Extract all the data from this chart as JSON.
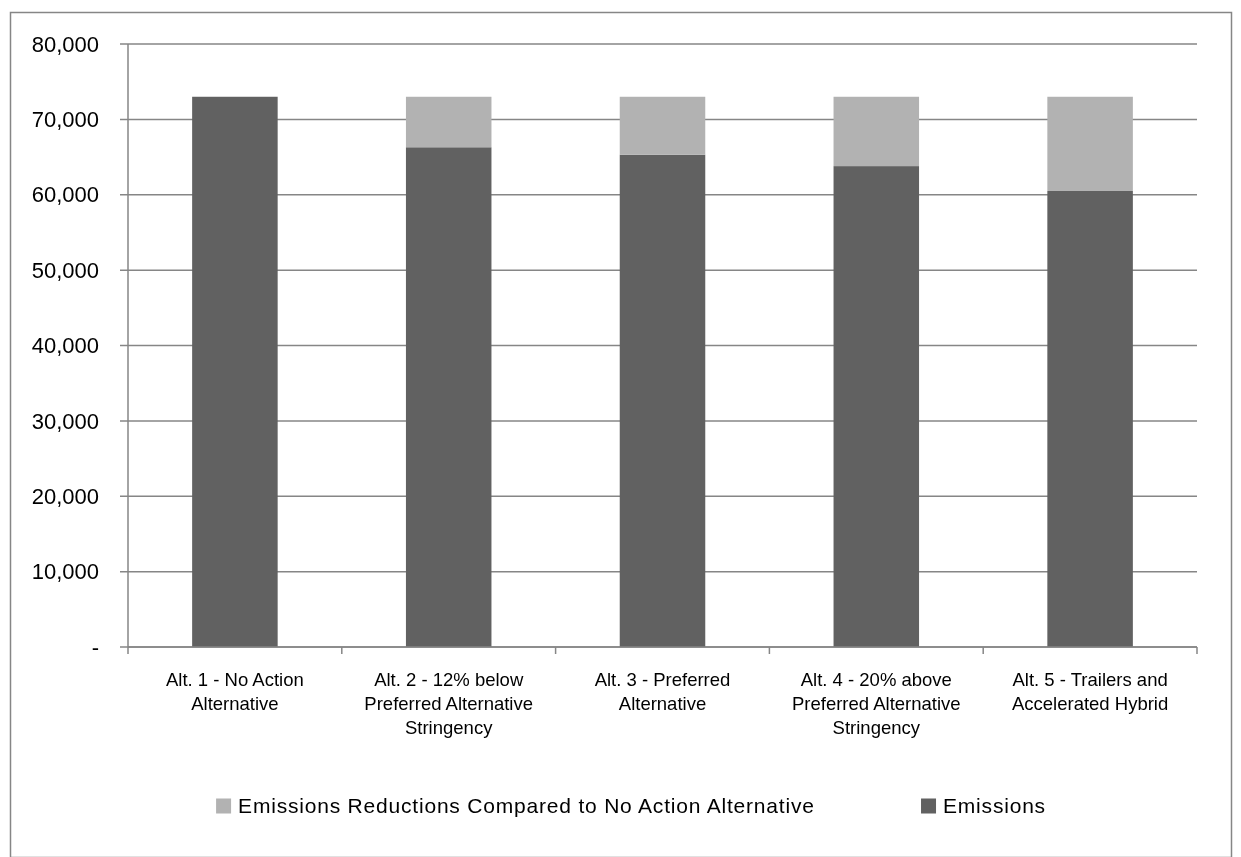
{
  "chart_data": {
    "type": "bar",
    "stacked": true,
    "categories": [
      "Alt. 1 - No Action Alternative",
      "Alt. 2 - 12% below Preferred Alternative Stringency",
      "Alt. 3 - Preferred Alternative",
      "Alt. 4 - 20% above Preferred Alternative Stringency",
      "Alt. 5 - Trailers and Accelerated Hybrid"
    ],
    "series": [
      {
        "name": "Emissions",
        "color": "#616161",
        "values": [
          73000,
          66300,
          65300,
          63800,
          60500
        ]
      },
      {
        "name": "Emissions Reductions Compared to No Action Alternative",
        "color": "#b2b2b2",
        "values": [
          0,
          6700,
          7700,
          9200,
          12500
        ]
      }
    ],
    "ylim": [
      0,
      80000
    ],
    "yticks": [
      {
        "value": 0,
        "label": "-"
      },
      {
        "value": 10000,
        "label": "10,000"
      },
      {
        "value": 20000,
        "label": "20,000"
      },
      {
        "value": 30000,
        "label": "30,000"
      },
      {
        "value": 40000,
        "label": "40,000"
      },
      {
        "value": 50000,
        "label": "50,000"
      },
      {
        "value": 60000,
        "label": "60,000"
      },
      {
        "value": 70000,
        "label": "70,000"
      },
      {
        "value": 80000,
        "label": "80,000"
      }
    ],
    "grid": "y",
    "legend": "bottom"
  }
}
